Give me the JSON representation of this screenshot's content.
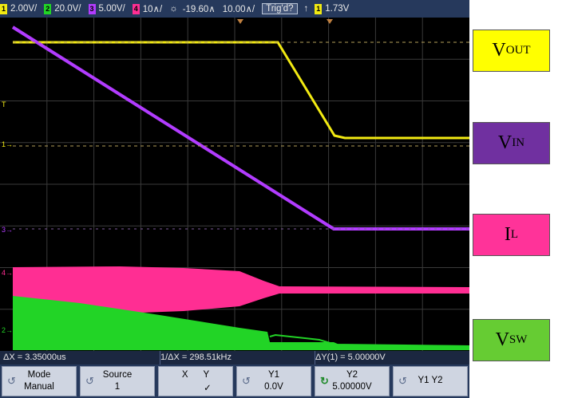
{
  "scope": {
    "status": {
      "ch1_scale": "2.00V/",
      "ch2_scale": "20.0V/",
      "ch3_scale": "5.00V/",
      "ch4_scale": "10∧/",
      "trigger_delay": "-19.60∧",
      "time_scale": "10.00∧/",
      "trig_status": "Trig'd?",
      "trig_slope": "↑",
      "trig_level": "1.73V",
      "ch_numbers": [
        "1",
        "2",
        "3",
        "4",
        "1"
      ]
    },
    "markers": [
      "T",
      "1→",
      "3→",
      "4→",
      "2→"
    ],
    "measurements": {
      "delta_x": "ΔX = 3.35000us",
      "inv_delta_x": "1/ΔX = 298.51kHz",
      "delta_y": "ΔY(1) = 5.00000V"
    },
    "softkeys": [
      {
        "top": "Mode",
        "bottom": "Manual"
      },
      {
        "top": "Source",
        "bottom": "1"
      },
      {
        "top": "X      Y",
        "bottom": "✓"
      },
      {
        "top": "Y1",
        "bottom": "0.0V"
      },
      {
        "top": "Y2",
        "bottom": "5.00000V"
      },
      {
        "top": "Y1 Y2",
        "bottom": ""
      }
    ]
  },
  "legend": [
    {
      "main": "V",
      "sub": "OUT",
      "color": "#ffff00"
    },
    {
      "main": "V",
      "sub": "IN",
      "color": "#7030a0"
    },
    {
      "main": "I",
      "sub": "L",
      "color": "#ff3399"
    },
    {
      "main": "V",
      "sub": "SW",
      "color": "#66cc33"
    }
  ],
  "colors": {
    "ch1": "#f2ea12",
    "ch2": "#22d426",
    "ch3": "#b23cff",
    "ch4": "#ff2e93"
  }
}
